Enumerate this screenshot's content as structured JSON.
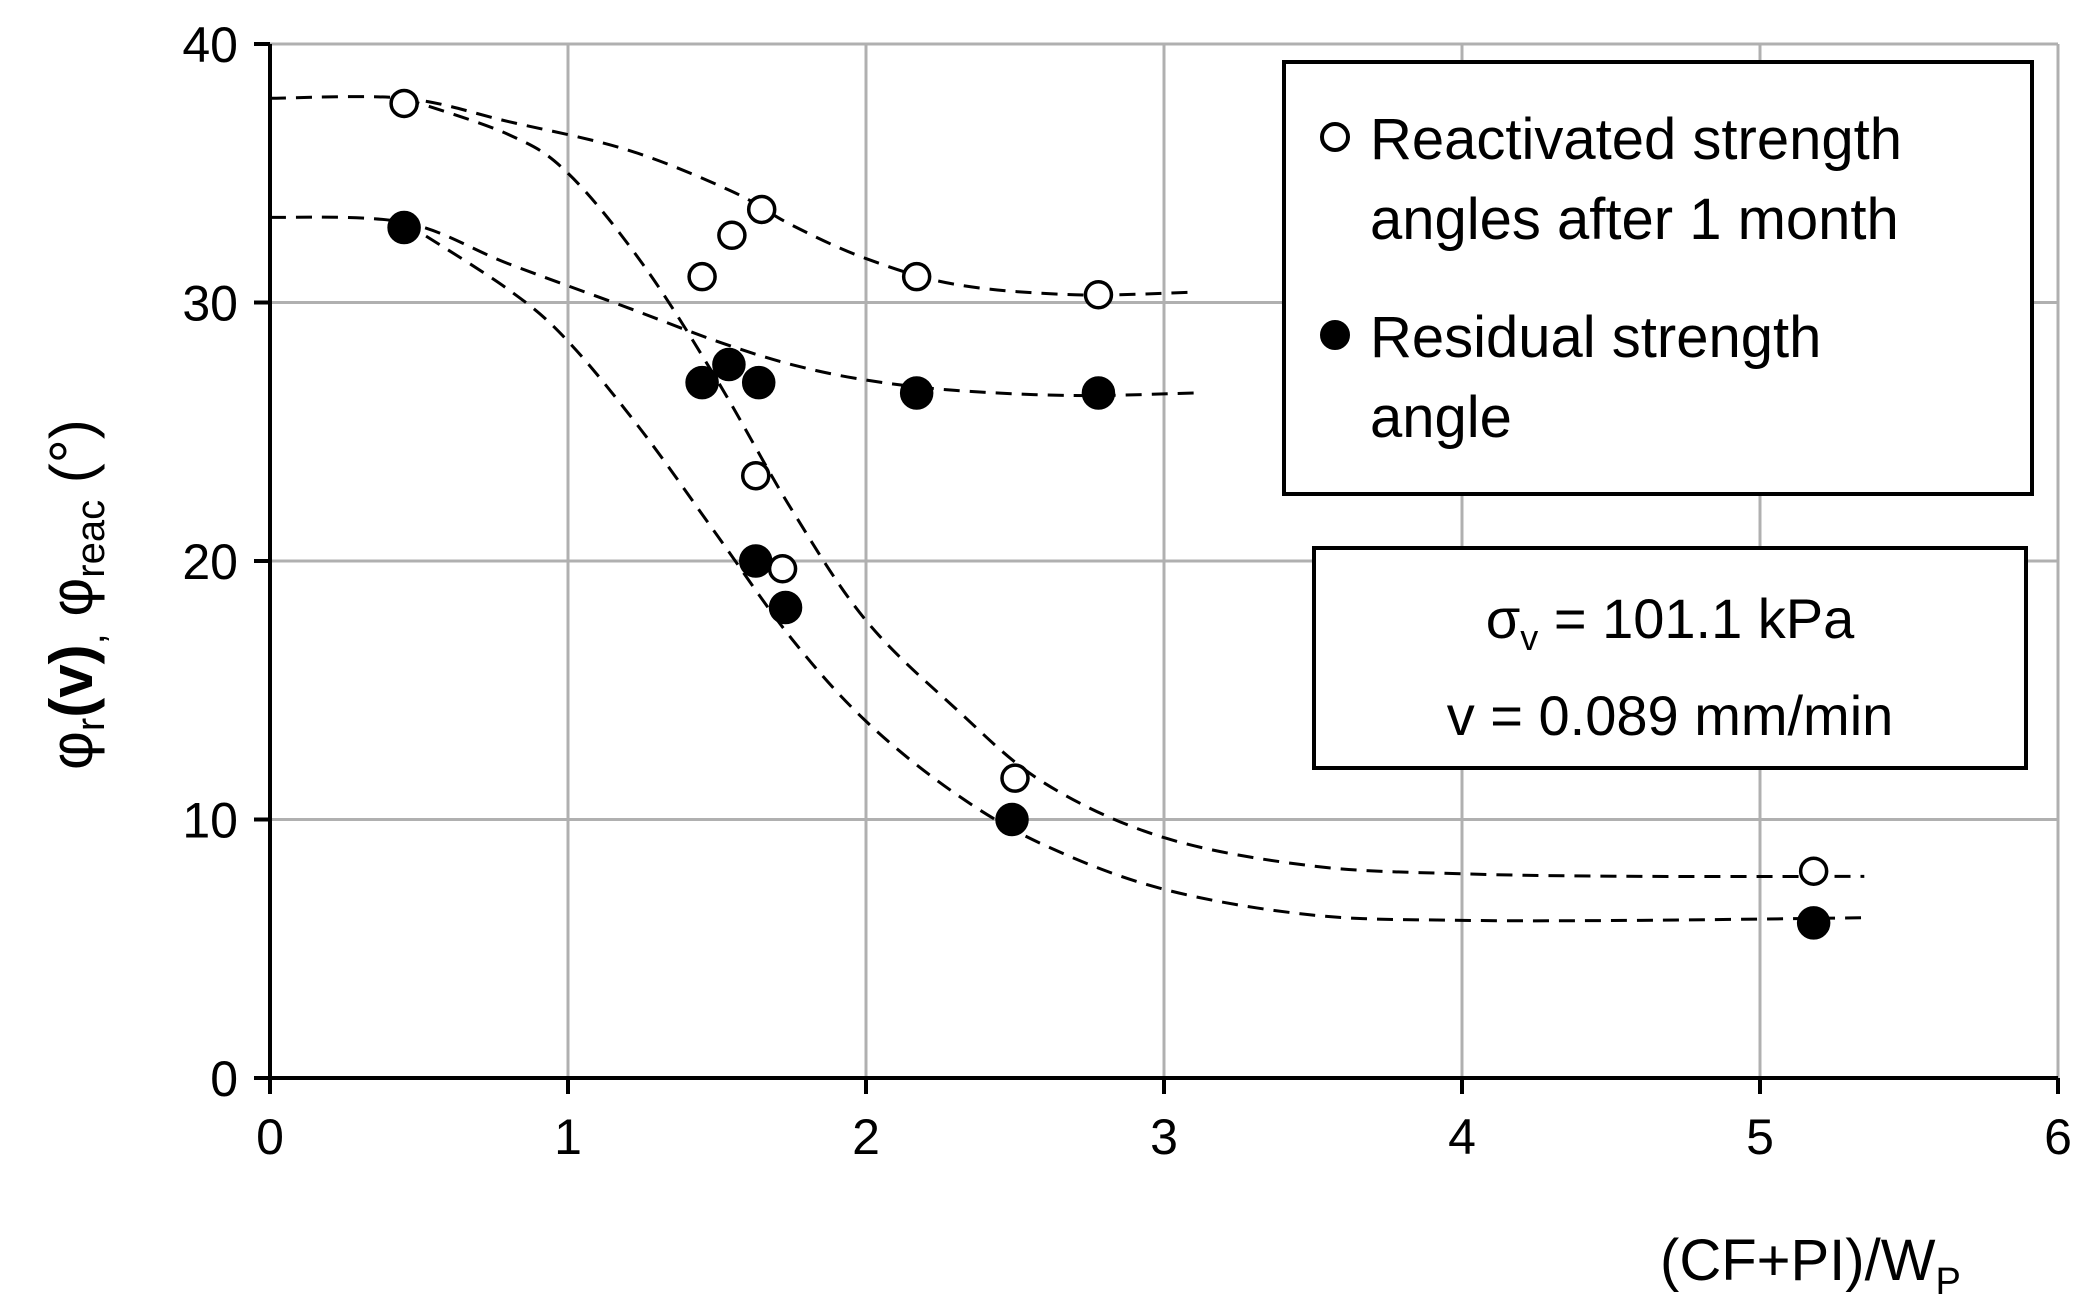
{
  "chart_data": {
    "type": "scatter",
    "title": "",
    "xlabel": {
      "main": "(CF+PI)/W",
      "sub": "P"
    },
    "ylabel": {
      "phi1": "φ",
      "sub1": "r",
      "arg": "(v)",
      "comma1": ",",
      "phi2": "φ",
      "sub2": "reac",
      "unit": "(°)"
    },
    "xlim": [
      0,
      6
    ],
    "ylim": [
      0,
      40
    ],
    "xticks": [
      0,
      1,
      2,
      3,
      4,
      5,
      6
    ],
    "xtick_labels": [
      "0",
      "1",
      "2",
      "3",
      "4",
      "5",
      "6"
    ],
    "yticks": [
      0,
      10,
      20,
      30,
      40
    ],
    "ytick_labels": [
      "0",
      "10",
      "20",
      "30",
      "40"
    ],
    "grid": true,
    "legend_position": "top-right",
    "series": [
      {
        "name": "Reactivated strength angles after 1 month",
        "legend_lines": [
          "Reactivated strength",
          "angles after 1 month"
        ],
        "marker": "open-circle",
        "x": [
          0.45,
          1.45,
          1.55,
          1.65,
          1.63,
          1.72,
          2.17,
          2.5,
          2.78,
          5.18
        ],
        "y": [
          37.7,
          31.0,
          32.6,
          33.6,
          23.3,
          19.7,
          31.0,
          11.6,
          30.3,
          8.0
        ]
      },
      {
        "name": "Residual strength angle",
        "legend_lines": [
          "Residual strength",
          "angle"
        ],
        "marker": "filled-circle",
        "x": [
          0.45,
          1.45,
          1.54,
          1.64,
          1.63,
          1.73,
          2.17,
          2.49,
          2.78,
          5.18
        ],
        "y": [
          32.9,
          26.9,
          27.6,
          26.9,
          20.0,
          18.2,
          26.5,
          10.0,
          26.5,
          6.0
        ]
      }
    ],
    "trend_lines": [
      {
        "name": "reactivated-upper-fit",
        "x": [
          0,
          0.45,
          0.8,
          1.2,
          1.55,
          1.75,
          2.0,
          2.3,
          2.7,
          3.1
        ],
        "y": [
          37.9,
          37.9,
          37.0,
          35.9,
          34.3,
          33.0,
          31.7,
          30.7,
          30.3,
          30.4
        ]
      },
      {
        "name": "residual-upper-fit",
        "x": [
          0,
          0.45,
          0.8,
          1.2,
          1.5,
          1.75,
          2.0,
          2.3,
          2.7,
          3.1
        ],
        "y": [
          33.3,
          33.1,
          31.5,
          29.8,
          28.5,
          27.6,
          27.0,
          26.6,
          26.4,
          26.5
        ]
      },
      {
        "name": "reactivated-lower-fit",
        "x": [
          0.45,
          0.8,
          1.0,
          1.25,
          1.5,
          1.75,
          2.0,
          2.3,
          2.6,
          3.0,
          3.5,
          4.0,
          4.6,
          5.35
        ],
        "y": [
          37.9,
          36.5,
          35.0,
          31.5,
          27.0,
          22.0,
          17.7,
          14.3,
          11.4,
          9.3,
          8.2,
          7.9,
          7.8,
          7.8
        ]
      },
      {
        "name": "residual-lower-fit",
        "x": [
          0.45,
          0.8,
          1.0,
          1.25,
          1.5,
          1.75,
          2.0,
          2.3,
          2.6,
          3.0,
          3.5,
          4.0,
          4.6,
          5.35
        ],
        "y": [
          33.1,
          30.5,
          28.5,
          25.0,
          21.0,
          17.0,
          13.8,
          11.0,
          9.0,
          7.3,
          6.3,
          6.1,
          6.1,
          6.2
        ]
      }
    ],
    "annotation": {
      "sigma_symbol": "σ",
      "sigma_sub": "v",
      "sigma_rest": " = 101.1 kPa",
      "velocity": "v = 0.089 mm/min"
    }
  }
}
